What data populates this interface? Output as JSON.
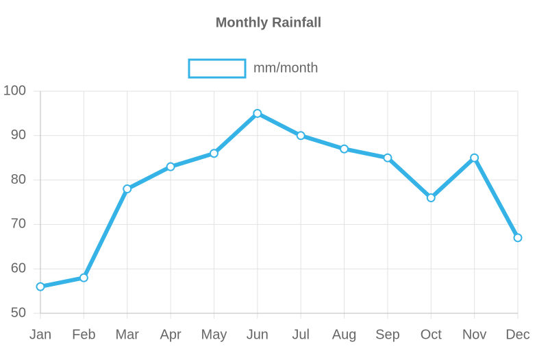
{
  "chart_data": {
    "type": "line",
    "title": "Monthly Rainfall",
    "categories": [
      "Jan",
      "Feb",
      "Mar",
      "Apr",
      "May",
      "Jun",
      "Jul",
      "Aug",
      "Sep",
      "Oct",
      "Nov",
      "Dec"
    ],
    "series": [
      {
        "name": "mm/month",
        "color": "#36b3e6",
        "values": [
          56,
          58,
          78,
          83,
          86,
          95,
          90,
          87,
          85,
          76,
          85,
          67
        ]
      }
    ],
    "ylim": [
      50,
      100
    ],
    "yticks": [
      50,
      60,
      70,
      80,
      90,
      100
    ],
    "grid": true,
    "legend": "top"
  }
}
